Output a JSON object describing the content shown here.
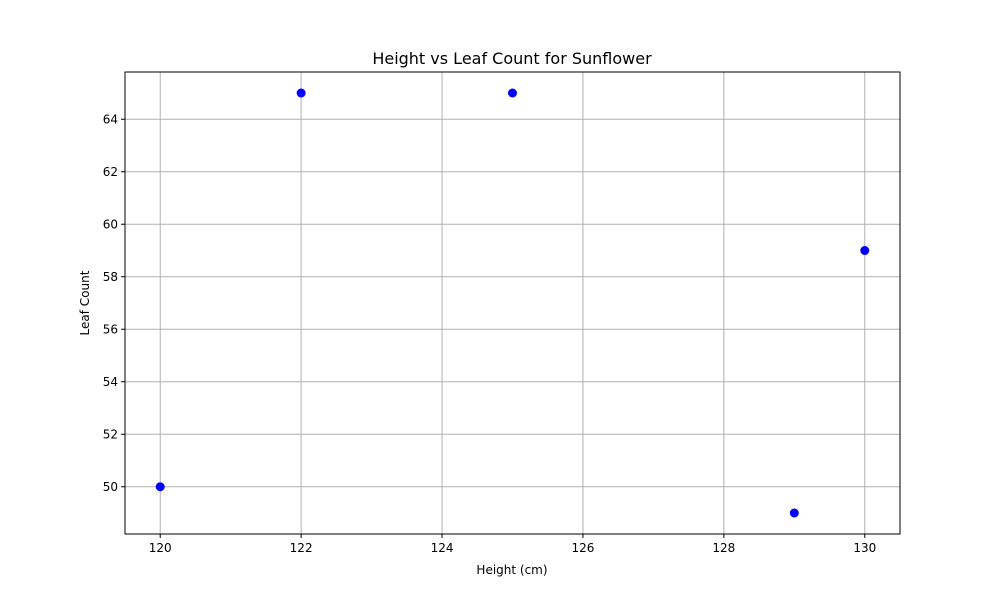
{
  "chart_data": {
    "type": "scatter",
    "title": "Height vs Leaf Count for Sunflower",
    "xlabel": "Height (cm)",
    "ylabel": "Leaf Count",
    "xlim": [
      119.5,
      130.5
    ],
    "ylim": [
      48.2,
      65.8
    ],
    "xticks": [
      120,
      122,
      124,
      126,
      128,
      130
    ],
    "yticks": [
      50,
      52,
      54,
      56,
      58,
      60,
      62,
      64
    ],
    "grid": true,
    "legend": "none",
    "series": [
      {
        "color": "#0000ff",
        "points": [
          {
            "x": 120,
            "y": 50
          },
          {
            "x": 122,
            "y": 65
          },
          {
            "x": 125,
            "y": 65
          },
          {
            "x": 129,
            "y": 49
          },
          {
            "x": 130,
            "y": 59
          }
        ]
      }
    ]
  }
}
